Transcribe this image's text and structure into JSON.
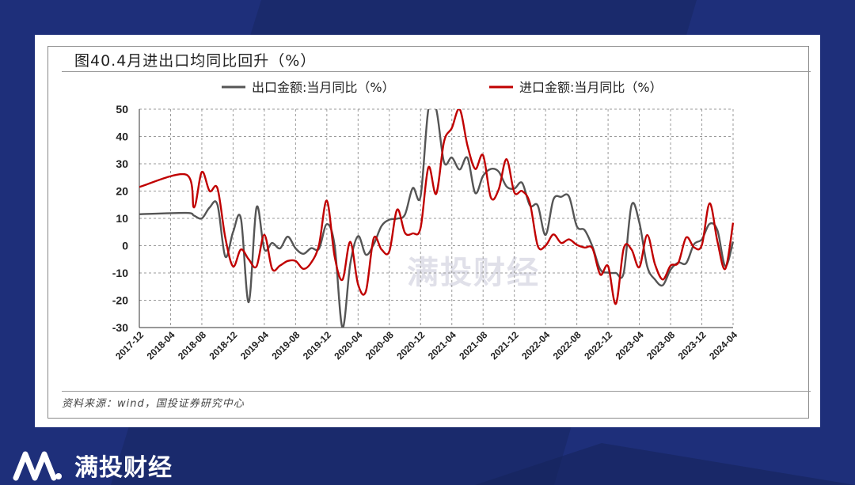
{
  "title": "图40.4月进出口均同比回升（%）",
  "source": "资料来源：wind，国投证券研究中心",
  "watermark": "满投财经",
  "brand": {
    "name": "满投财经"
  },
  "colors": {
    "background": "#1a2a6c",
    "export": "#555555",
    "import": "#c00000"
  },
  "chart_data": {
    "type": "line",
    "ylim": [
      -30,
      50
    ],
    "yticks": [
      50,
      40,
      30,
      20,
      10,
      0,
      -10,
      -20,
      -30
    ],
    "xticks": [
      "2017-12",
      "2018-04",
      "2018-08",
      "2018-12",
      "2019-04",
      "2019-08",
      "2019-12",
      "2020-04",
      "2020-08",
      "2020-12",
      "2021-04",
      "2021-08",
      "2021-12",
      "2022-04",
      "2022-08",
      "2022-12",
      "2023-04",
      "2023-08",
      "2023-12",
      "2024-04"
    ],
    "grid": true,
    "legend_position": "top",
    "series": [
      {
        "name": "出口金额:当月同比（%）",
        "color": "#555555",
        "x": [
          "2017-12",
          "2018-06",
          "2018-07",
          "2018-08",
          "2018-09",
          "2018-10",
          "2018-11",
          "2018-12",
          "2019-01",
          "2019-02",
          "2019-03",
          "2019-04",
          "2019-05",
          "2019-06",
          "2019-07",
          "2019-08",
          "2019-09",
          "2019-10",
          "2019-11",
          "2019-12",
          "2020-01",
          "2020-02",
          "2020-03",
          "2020-04",
          "2020-05",
          "2020-06",
          "2020-07",
          "2020-08",
          "2020-09",
          "2020-10",
          "2020-11",
          "2020-12",
          "2021-01",
          "2021-02",
          "2021-03",
          "2021-04",
          "2021-05",
          "2021-06",
          "2021-07",
          "2021-08",
          "2021-09",
          "2021-10",
          "2021-11",
          "2021-12",
          "2022-01",
          "2022-02",
          "2022-03",
          "2022-04",
          "2022-05",
          "2022-06",
          "2022-07",
          "2022-08",
          "2022-09",
          "2022-10",
          "2022-11",
          "2022-12",
          "2023-01",
          "2023-02",
          "2023-03",
          "2023-04",
          "2023-05",
          "2023-06",
          "2023-07",
          "2023-08",
          "2023-09",
          "2023-10",
          "2023-11",
          "2023-12",
          "2024-01",
          "2024-02",
          "2024-03",
          "2024-04"
        ],
        "values": [
          11.5,
          12,
          11,
          10,
          14,
          15,
          -4,
          5,
          10,
          -20.7,
          14,
          -1.3,
          1,
          -1,
          3.3,
          -1,
          -3,
          -0.9,
          -1.1,
          7.9,
          0,
          -30,
          -6.6,
          3.5,
          -3.3,
          0.5,
          7.2,
          9.5,
          9.9,
          11.4,
          21.1,
          18.1,
          60,
          60,
          30.6,
          32.3,
          27.9,
          32.2,
          19.3,
          25.6,
          28.1,
          27.1,
          21.7,
          20.9,
          23,
          14.7,
          14.7,
          3.9,
          16.9,
          17.9,
          18,
          7.1,
          5.7,
          -0.3,
          -8.7,
          -9.9,
          -10,
          -10,
          14.8,
          8.5,
          -7.5,
          -12.4,
          -14.5,
          -8.8,
          -6.2,
          -6.4,
          0.5,
          2.3,
          8,
          5.6,
          -7.5,
          1.5
        ]
      },
      {
        "name": "进口金额:当月同比（%）",
        "color": "#c00000",
        "x": [
          "2017-12",
          "2018-06",
          "2018-07",
          "2018-08",
          "2018-09",
          "2018-10",
          "2018-11",
          "2018-12",
          "2019-01",
          "2019-02",
          "2019-03",
          "2019-04",
          "2019-05",
          "2019-06",
          "2019-07",
          "2019-08",
          "2019-09",
          "2019-10",
          "2019-11",
          "2019-12",
          "2020-01",
          "2020-02",
          "2020-03",
          "2020-04",
          "2020-05",
          "2020-06",
          "2020-07",
          "2020-08",
          "2020-09",
          "2020-10",
          "2020-11",
          "2020-12",
          "2021-01",
          "2021-02",
          "2021-03",
          "2021-04",
          "2021-05",
          "2021-06",
          "2021-07",
          "2021-08",
          "2021-09",
          "2021-10",
          "2021-11",
          "2021-12",
          "2022-01",
          "2022-02",
          "2022-03",
          "2022-04",
          "2022-05",
          "2022-06",
          "2022-07",
          "2022-08",
          "2022-09",
          "2022-10",
          "2022-11",
          "2022-12",
          "2023-01",
          "2023-02",
          "2023-03",
          "2023-04",
          "2023-05",
          "2023-06",
          "2023-07",
          "2023-08",
          "2023-09",
          "2023-10",
          "2023-11",
          "2023-12",
          "2024-01",
          "2024-02",
          "2024-03",
          "2024-04"
        ],
        "values": [
          21.5,
          26,
          14,
          27,
          20,
          21,
          3,
          -7.6,
          -1.4,
          -5,
          -7.6,
          4,
          -8.5,
          -7.3,
          -5.6,
          -5.6,
          -8.5,
          -6.2,
          0.3,
          16.5,
          -4,
          -12.5,
          1.4,
          -14.2,
          -16.7,
          2.7,
          -1.4,
          -2.1,
          13.2,
          4.7,
          4.5,
          6.5,
          28.7,
          19,
          38.1,
          43.1,
          51.1,
          36.7,
          28.1,
          33.1,
          17.6,
          20.6,
          31.7,
          19.5,
          20,
          15.5,
          -0.1,
          0,
          4.1,
          1,
          2.3,
          0.3,
          -0.7,
          -1,
          -10.6,
          -7.5,
          -21.3,
          -1,
          -1.4,
          -7.9,
          3.9,
          -6.8,
          -12.4,
          -7.3,
          -6.2,
          3,
          -0.6,
          0.2,
          15.5,
          1.5,
          -8.5,
          8.4
        ]
      }
    ]
  }
}
